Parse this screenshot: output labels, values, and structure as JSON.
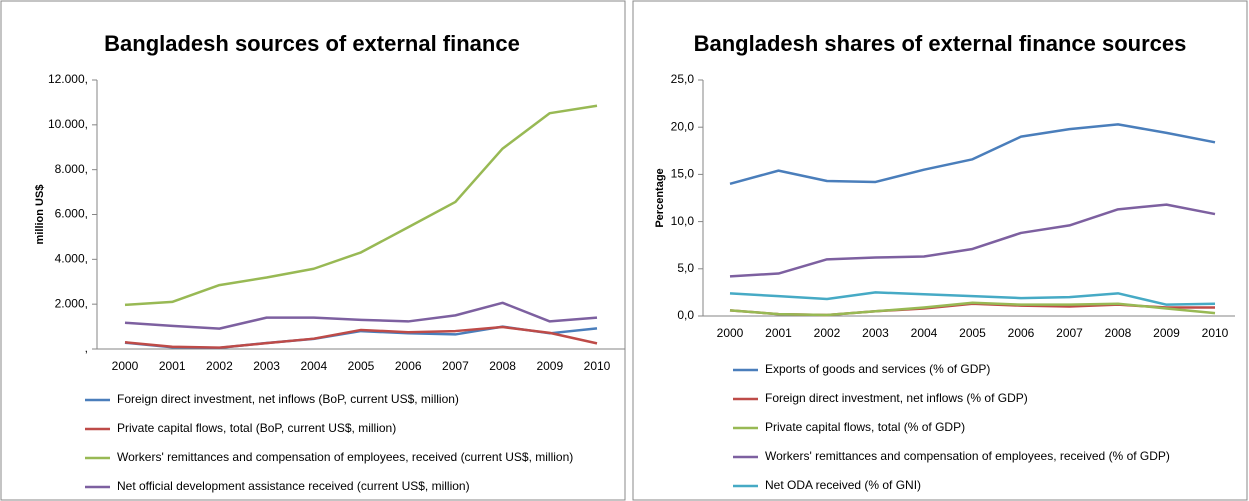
{
  "chart_data": [
    {
      "type": "line",
      "title": "Bangladesh sources of external finance",
      "ylabel": "million US$",
      "categories": [
        "2000",
        "2001",
        "2002",
        "2003",
        "2004",
        "2005",
        "2006",
        "2007",
        "2008",
        "2009",
        "2010"
      ],
      "ylim": [
        0,
        12000
      ],
      "yticks": [
        {
          "value": 0,
          "label": ","
        },
        {
          "value": 2000,
          "label": "2.000,"
        },
        {
          "value": 4000,
          "label": "4.000,"
        },
        {
          "value": 6000,
          "label": "6.000,"
        },
        {
          "value": 8000,
          "label": "8.000,"
        },
        {
          "value": 10000,
          "label": "10.000,"
        },
        {
          "value": 12000,
          "label": "12.000,"
        }
      ],
      "grid": false,
      "legend": "bottom",
      "series": [
        {
          "name": "Foreign direct investment, net inflows (BoP, current US$, million)",
          "color": "#4a7ebb",
          "values": [
            280,
            80,
            50,
            270,
            450,
            800,
            700,
            650,
            1000,
            700,
            920
          ]
        },
        {
          "name": "Private capital flows, total (BoP, current US$, million)",
          "color": "#be4b48",
          "values": [
            300,
            100,
            60,
            260,
            460,
            850,
            750,
            800,
            980,
            720,
            250
          ]
        },
        {
          "name": "Workers' remittances and compensation of employees, received (current US$, million)",
          "color": "#98b954",
          "values": [
            1970,
            2100,
            2850,
            3190,
            3580,
            4310,
            5430,
            6560,
            8940,
            10520,
            10850
          ]
        },
        {
          "name": "Net official development assistance received (current US$, million)",
          "color": "#7d60a0",
          "values": [
            1170,
            1030,
            910,
            1400,
            1400,
            1300,
            1230,
            1500,
            2060,
            1230,
            1400
          ]
        }
      ]
    },
    {
      "type": "line",
      "title": "Bangladesh shares of external finance sources",
      "ylabel": "Percentage",
      "categories": [
        "2000",
        "2001",
        "2002",
        "2003",
        "2004",
        "2005",
        "2006",
        "2007",
        "2008",
        "2009",
        "2010"
      ],
      "ylim": [
        0,
        25
      ],
      "yticks": [
        {
          "value": 0,
          "label": "0,0"
        },
        {
          "value": 5,
          "label": "5,0"
        },
        {
          "value": 10,
          "label": "10,0"
        },
        {
          "value": 15,
          "label": "15,0"
        },
        {
          "value": 20,
          "label": "20,0"
        },
        {
          "value": 25,
          "label": "25,0"
        }
      ],
      "grid": false,
      "legend": "bottom",
      "series": [
        {
          "name": "Exports of goods and services (% of GDP)",
          "color": "#4a7ebb",
          "values": [
            14.0,
            15.4,
            14.3,
            14.2,
            15.5,
            16.6,
            19.0,
            19.8,
            20.3,
            19.4,
            18.4
          ]
        },
        {
          "name": "Foreign direct investment, net inflows (% of GDP)",
          "color": "#be4b48",
          "values": [
            0.6,
            0.2,
            0.1,
            0.5,
            0.8,
            1.3,
            1.1,
            1.0,
            1.2,
            0.9,
            0.9
          ]
        },
        {
          "name": "Private capital flows, total (% of GDP)",
          "color": "#98b954",
          "values": [
            0.6,
            0.2,
            0.1,
            0.5,
            0.9,
            1.4,
            1.2,
            1.2,
            1.3,
            0.8,
            0.3
          ]
        },
        {
          "name": "Workers' remittances and compensation of employees, received (% of GDP)",
          "color": "#7d60a0",
          "values": [
            4.2,
            4.5,
            6.0,
            6.2,
            6.3,
            7.1,
            8.8,
            9.6,
            11.3,
            11.8,
            10.8
          ]
        },
        {
          "name": "Net ODA received (% of GNI)",
          "color": "#46aac5",
          "values": [
            2.4,
            2.1,
            1.8,
            2.5,
            2.3,
            2.1,
            1.9,
            2.0,
            2.4,
            1.2,
            1.3
          ]
        }
      ]
    }
  ]
}
